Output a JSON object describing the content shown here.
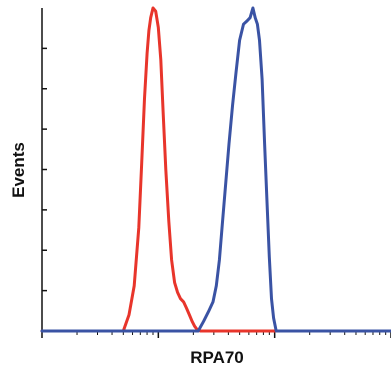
{
  "chart_data": {
    "type": "line",
    "title": "",
    "xlabel": "RPA70",
    "ylabel": "Events",
    "x_scale": "log",
    "xlim": [
      100,
      100000
    ],
    "ylim": [
      0,
      1
    ],
    "grid": false,
    "legend": "none",
    "colors": {
      "axis": "#111111",
      "series_1": "#e8352b",
      "series_2": "#3a53a4"
    },
    "series": [
      {
        "x": [
          100,
          500,
          560,
          620,
          680,
          720,
          760,
          800,
          830,
          860,
          900,
          950,
          1000,
          1050,
          1100,
          1160,
          1230,
          1300,
          1380,
          1460,
          1550,
          1650,
          1750,
          1850,
          1950,
          2050,
          2150,
          2300,
          100000
        ],
        "values": [
          0,
          0,
          0.05,
          0.14,
          0.32,
          0.52,
          0.72,
          0.86,
          0.93,
          0.97,
          1.0,
          0.99,
          0.94,
          0.84,
          0.68,
          0.5,
          0.34,
          0.22,
          0.15,
          0.12,
          0.1,
          0.09,
          0.07,
          0.05,
          0.03,
          0.015,
          0.005,
          0,
          0
        ]
      },
      {
        "x": [
          100,
          2200,
          2450,
          2700,
          2950,
          3150,
          3350,
          3550,
          3800,
          4050,
          4350,
          4650,
          5000,
          5400,
          5800,
          6150,
          6500,
          6800,
          7100,
          7400,
          7800,
          8200,
          8600,
          9000,
          9400,
          9800,
          10300,
          100000
        ],
        "values": [
          0,
          0,
          0.03,
          0.06,
          0.09,
          0.14,
          0.22,
          0.33,
          0.46,
          0.58,
          0.7,
          0.8,
          0.9,
          0.95,
          0.96,
          0.97,
          1.0,
          0.97,
          0.95,
          0.9,
          0.78,
          0.58,
          0.4,
          0.23,
          0.1,
          0.04,
          0,
          0
        ]
      }
    ]
  }
}
